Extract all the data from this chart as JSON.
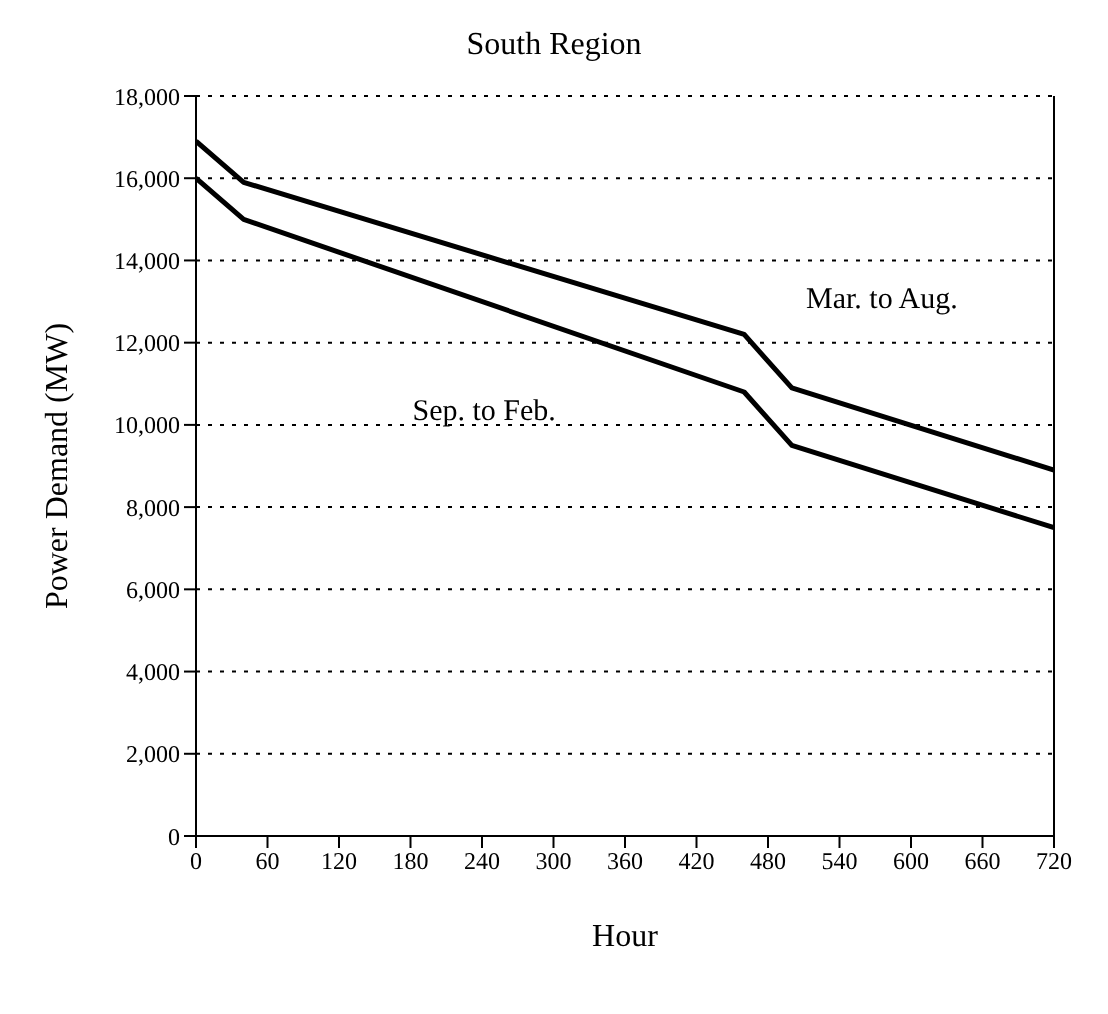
{
  "chart_data": {
    "type": "line",
    "title": "South Region",
    "xlabel": "Hour",
    "ylabel": "Power Demand (MW)",
    "x": [
      0,
      40,
      460,
      500,
      720
    ],
    "series": [
      {
        "name": "Mar. to Aug.",
        "color": "#000000",
        "values": [
          16900,
          15900,
          12200,
          10900,
          8900
        ]
      },
      {
        "name": "Sep. to Feb.",
        "color": "#000000",
        "values": [
          16000,
          15000,
          10800,
          9500,
          7500
        ]
      }
    ],
    "xlim": [
      0,
      720
    ],
    "xticks": [
      0,
      60,
      120,
      180,
      240,
      300,
      360,
      420,
      480,
      540,
      600,
      660,
      720
    ],
    "ylim": [
      0,
      18000
    ],
    "yticks": [
      0,
      {
        "value": 2000,
        "label": "2,000"
      },
      {
        "value": 4000,
        "label": "4,000"
      },
      {
        "value": 6000,
        "label": "6,000"
      },
      {
        "value": 8000,
        "label": "8,000"
      },
      {
        "value": 10000,
        "label": "10,000"
      },
      {
        "value": 12000,
        "label": "12,000"
      },
      {
        "value": 14000,
        "label": "14,000"
      },
      {
        "value": 16000,
        "label": "16,000"
      },
      {
        "value": 18000,
        "label": "18,000"
      }
    ],
    "grid": "y",
    "marker": "none",
    "line_style": "solid"
  }
}
